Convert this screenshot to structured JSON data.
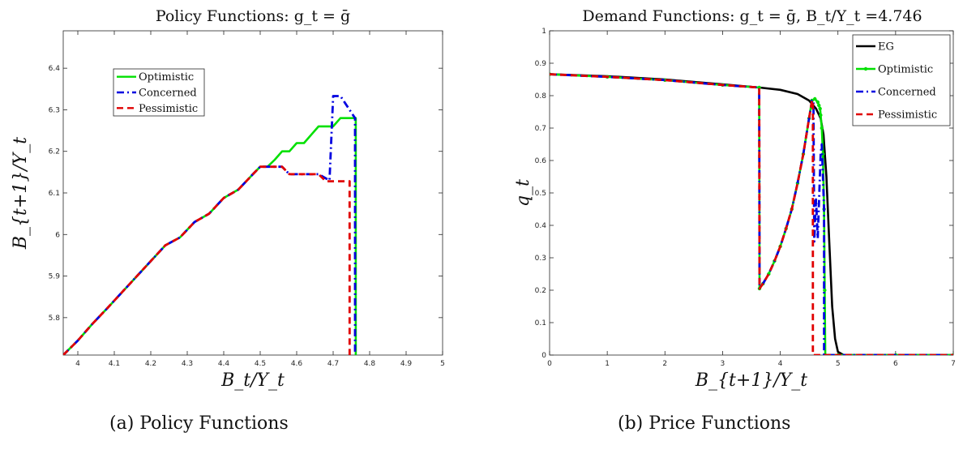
{
  "captions": {
    "a": "(a) Policy Functions",
    "b": "(b) Price Functions"
  },
  "chart_data": [
    {
      "type": "line",
      "title": "Policy Functions: g_t = ḡ",
      "xlabel": "B_t/Y_t",
      "ylabel": "B_{t+1}/Y_t",
      "xlim": [
        3.96,
        5.0
      ],
      "ylim": [
        5.71,
        6.49
      ],
      "xticks": [
        4,
        4.1,
        4.2,
        4.3,
        4.4,
        4.5,
        4.6,
        4.7,
        4.8,
        4.9,
        5
      ],
      "yticks": [
        5.8,
        5.9,
        6,
        6.1,
        6.2,
        6.3,
        6.4
      ],
      "grid": false,
      "legend_position": "upper-left",
      "series": [
        {
          "name": "Optimistic",
          "color": "#00e000",
          "dash": "solid",
          "x": [
            3.96,
            4.0,
            4.04,
            4.08,
            4.12,
            4.16,
            4.2,
            4.24,
            4.28,
            4.32,
            4.36,
            4.4,
            4.44,
            4.48,
            4.5,
            4.52,
            4.54,
            4.56,
            4.58,
            4.6,
            4.62,
            4.64,
            4.66,
            4.68,
            4.7,
            4.72,
            4.74,
            4.762,
            4.762
          ],
          "y": [
            5.71,
            5.745,
            5.785,
            5.822,
            5.86,
            5.898,
            5.936,
            5.974,
            5.993,
            6.03,
            6.05,
            6.088,
            6.108,
            6.145,
            6.163,
            6.163,
            6.18,
            6.2,
            6.2,
            6.22,
            6.22,
            6.24,
            6.26,
            6.26,
            6.26,
            6.28,
            6.28,
            6.28,
            5.71
          ]
        },
        {
          "name": "Concerned",
          "color": "#0000e0",
          "dash": "dashdot",
          "x": [
            3.96,
            4.0,
            4.04,
            4.08,
            4.12,
            4.16,
            4.2,
            4.24,
            4.28,
            4.32,
            4.36,
            4.4,
            4.44,
            4.48,
            4.5,
            4.56,
            4.58,
            4.66,
            4.69,
            4.7,
            4.72,
            4.76,
            4.76
          ],
          "y": [
            5.71,
            5.745,
            5.785,
            5.822,
            5.86,
            5.898,
            5.936,
            5.974,
            5.993,
            6.03,
            6.05,
            6.088,
            6.108,
            6.145,
            6.163,
            6.163,
            6.145,
            6.145,
            6.13,
            6.333,
            6.333,
            6.28,
            5.71
          ]
        },
        {
          "name": "Pessimistic",
          "color": "#e00000",
          "dash": "dashed",
          "x": [
            3.96,
            4.0,
            4.04,
            4.08,
            4.12,
            4.16,
            4.2,
            4.24,
            4.28,
            4.32,
            4.36,
            4.4,
            4.44,
            4.48,
            4.5,
            4.56,
            4.58,
            4.66,
            4.68,
            4.7,
            4.745,
            4.745
          ],
          "y": [
            5.71,
            5.745,
            5.785,
            5.822,
            5.86,
            5.898,
            5.936,
            5.974,
            5.993,
            6.03,
            6.05,
            6.088,
            6.108,
            6.145,
            6.163,
            6.163,
            6.145,
            6.145,
            6.128,
            6.128,
            6.128,
            5.71
          ]
        }
      ]
    },
    {
      "type": "line",
      "title": "Demand Functions: g_t = ḡ, B_t/Y_t =4.746",
      "xlabel": "B_{t+1}/Y_t",
      "ylabel": "q_t",
      "xlim": [
        0,
        7
      ],
      "ylim": [
        0,
        1
      ],
      "xticks": [
        0,
        1,
        2,
        3,
        4,
        5,
        6,
        7
      ],
      "yticks": [
        0,
        0.1,
        0.2,
        0.3,
        0.4,
        0.5,
        0.6,
        0.7,
        0.8,
        0.9,
        1
      ],
      "grid": false,
      "legend_position": "upper-right",
      "series": [
        {
          "name": "EG",
          "color": "#000000",
          "dash": "solid",
          "x": [
            0,
            1,
            2,
            3,
            3.64,
            4.0,
            4.3,
            4.5,
            4.62,
            4.7,
            4.75,
            4.8,
            4.85,
            4.9,
            4.95,
            5.0,
            5.1,
            5.5,
            6.5,
            7.0
          ],
          "y": [
            0.866,
            0.86,
            0.85,
            0.835,
            0.825,
            0.818,
            0.805,
            0.785,
            0.76,
            0.73,
            0.68,
            0.55,
            0.35,
            0.15,
            0.05,
            0.01,
            0.0,
            0.0,
            0.0,
            0.0
          ]
        },
        {
          "name": "Optimistic",
          "color": "#00e000",
          "dash": "solid",
          "markers": true,
          "x": [
            0,
            1,
            2,
            3,
            3.635,
            3.64,
            3.7,
            3.8,
            3.9,
            4.0,
            4.1,
            4.2,
            4.3,
            4.4,
            4.5,
            4.55,
            4.6,
            4.65,
            4.67,
            4.69,
            4.7,
            4.72,
            4.74,
            4.76,
            4.77,
            4.78,
            5.0,
            6.0,
            7.0
          ],
          "y": [
            0.866,
            0.858,
            0.848,
            0.833,
            0.825,
            0.205,
            0.22,
            0.25,
            0.29,
            0.335,
            0.39,
            0.45,
            0.53,
            0.62,
            0.73,
            0.785,
            0.79,
            0.78,
            0.77,
            0.76,
            0.74,
            0.7,
            0.62,
            0.45,
            0.2,
            0.0,
            0.0,
            0.0,
            0.0
          ]
        },
        {
          "name": "Concerned",
          "color": "#0000e0",
          "dash": "dashdot",
          "x": [
            0,
            1,
            2,
            3,
            3.635,
            3.64,
            3.7,
            3.8,
            3.9,
            4.0,
            4.1,
            4.2,
            4.3,
            4.4,
            4.5,
            4.55,
            4.575,
            4.59,
            4.62,
            4.65,
            4.7,
            4.72,
            4.76,
            4.76,
            5.0,
            6.0,
            7.0
          ],
          "y": [
            0.866,
            0.858,
            0.848,
            0.833,
            0.825,
            0.205,
            0.22,
            0.25,
            0.29,
            0.335,
            0.39,
            0.45,
            0.53,
            0.62,
            0.73,
            0.785,
            0.785,
            0.35,
            0.48,
            0.36,
            0.62,
            0.65,
            0.45,
            0.0,
            0.0,
            0.0,
            0.0
          ]
        },
        {
          "name": "Pessimistic",
          "color": "#e00000",
          "dash": "dashed",
          "x": [
            0,
            1,
            2,
            3,
            3.635,
            3.64,
            3.7,
            3.8,
            3.9,
            4.0,
            4.1,
            4.2,
            4.3,
            4.4,
            4.5,
            4.55,
            4.565,
            4.565,
            4.8,
            6.0,
            7.0
          ],
          "y": [
            0.866,
            0.858,
            0.848,
            0.833,
            0.825,
            0.205,
            0.22,
            0.25,
            0.29,
            0.335,
            0.39,
            0.45,
            0.53,
            0.62,
            0.73,
            0.785,
            0.785,
            0.0,
            0.0,
            0.0,
            0.0
          ]
        }
      ]
    }
  ]
}
